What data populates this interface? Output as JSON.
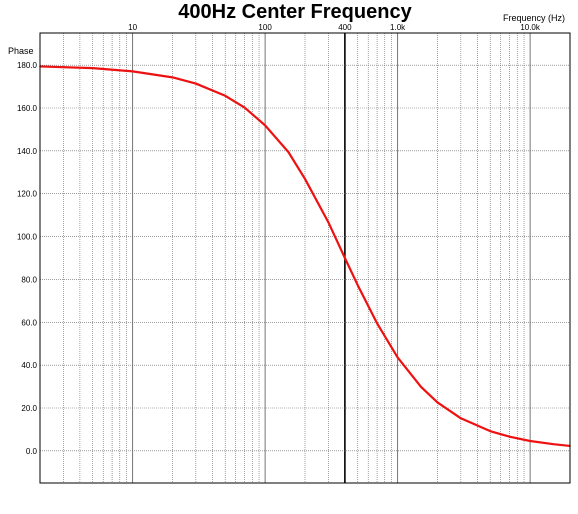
{
  "chart_data": {
    "type": "line",
    "title": "400Hz Center Frequency",
    "xlabel": "Frequency  (Hz)",
    "ylabel": "Phase",
    "x_scale": "log",
    "xlim": [
      2,
      20000
    ],
    "ylim": [
      -15,
      195
    ],
    "x_tick_labels": [
      {
        "value": 10,
        "label": "10"
      },
      {
        "value": 100,
        "label": "100"
      },
      {
        "value": 400,
        "label": "400"
      },
      {
        "value": 1000,
        "label": "1.0k"
      },
      {
        "value": 10000,
        "label": "10.0k"
      }
    ],
    "y_ticks": [
      0,
      20,
      40,
      60,
      80,
      100,
      120,
      140,
      160,
      180
    ],
    "y_tick_labels": [
      "0.0",
      "20.0",
      "40.0",
      "60.0",
      "80.0",
      "100.0",
      "120.0",
      "140.0",
      "160.0",
      "180.0"
    ],
    "highlight_x": 400,
    "grid": true,
    "series": [
      {
        "color": "#ee1111",
        "x": [
          2,
          5,
          10,
          20,
          30,
          50,
          70,
          100,
          150,
          200,
          300,
          400,
          500,
          700,
          1000,
          1500,
          2000,
          3000,
          5000,
          7000,
          10000,
          15000,
          20000
        ],
        "y": [
          179.4,
          178.6,
          177.1,
          174.3,
          171.4,
          165.7,
          160.2,
          151.9,
          139.4,
          126.9,
          106.7,
          90.0,
          77.3,
          59.5,
          43.6,
          29.9,
          22.6,
          15.2,
          9.2,
          6.6,
          4.6,
          3.1,
          2.3
        ]
      }
    ]
  }
}
